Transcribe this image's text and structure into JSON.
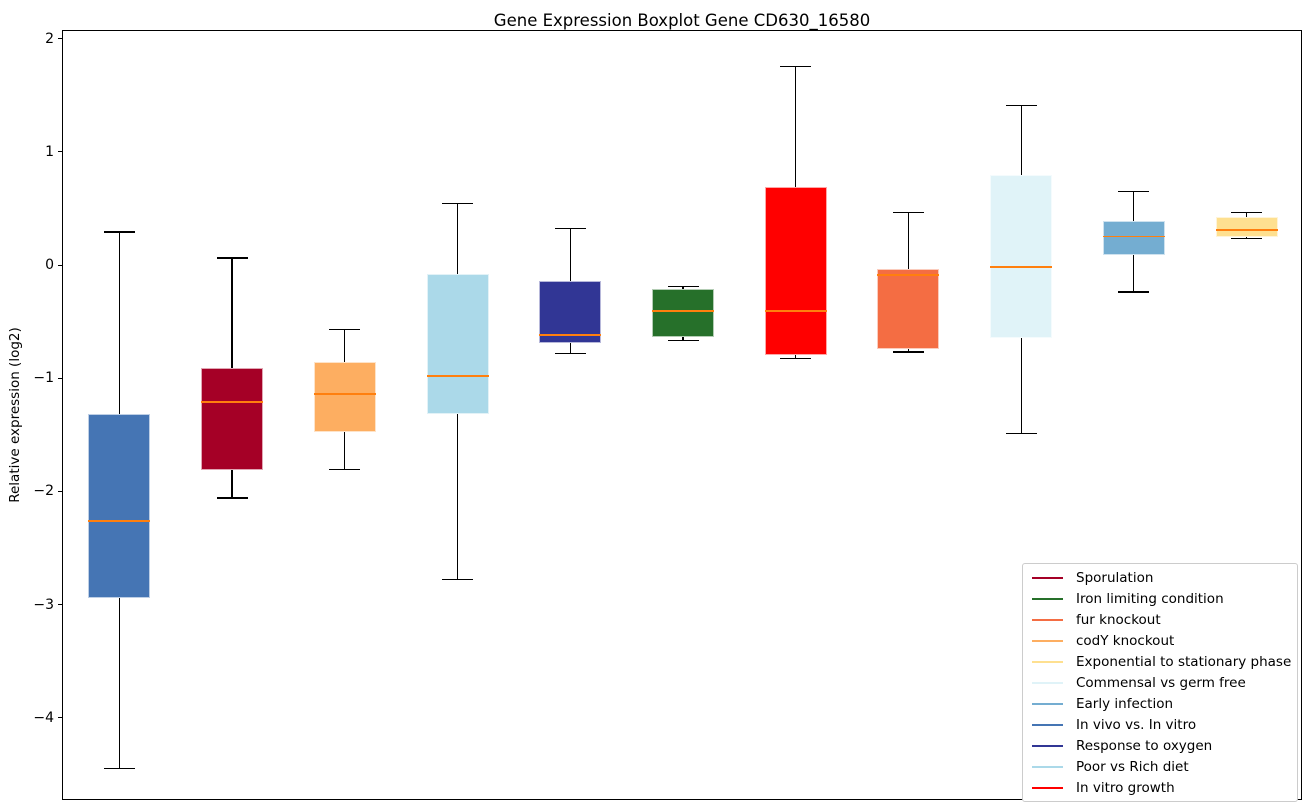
{
  "chart_data": {
    "type": "boxplot",
    "title": "Gene Expression Boxplot Gene CD630_16580",
    "xlabel": "",
    "ylabel": "Relative expression (log2)",
    "ylim": [
      -4.73,
      2.08
    ],
    "yticks": [
      2,
      1,
      0,
      -1,
      -2,
      -3,
      -4
    ],
    "grid": false,
    "legend_position": "lower right",
    "median_color": "#ff7f0e",
    "whisker_color": "#000000",
    "boxes": [
      {
        "label": "In vivo vs. In vitro",
        "color": "#4575b4",
        "whislo": -4.44,
        "q1": -2.93,
        "med": -2.25,
        "q3": -1.31,
        "whishi": 0.3
      },
      {
        "label": "Sporulation",
        "color": "#a50026",
        "whislo": -2.05,
        "q1": -1.8,
        "med": -1.2,
        "q3": -0.9,
        "whishi": 0.07
      },
      {
        "label": "codY knockout",
        "color": "#fdae61",
        "whislo": -1.8,
        "q1": -1.47,
        "med": -1.13,
        "q3": -0.85,
        "whishi": -0.56
      },
      {
        "label": "Poor vs Rich diet",
        "color": "#abd9e9",
        "whislo": -2.77,
        "q1": -1.31,
        "med": -0.97,
        "q3": -0.07,
        "whishi": 0.55
      },
      {
        "label": "Response to oxygen",
        "color": "#313695",
        "whislo": -0.77,
        "q1": -0.68,
        "med": -0.61,
        "q3": -0.13,
        "whishi": 0.33
      },
      {
        "label": "Iron limiting condition",
        "color": "#26702a",
        "whislo": -0.66,
        "q1": -0.63,
        "med": -0.4,
        "q3": -0.2,
        "whishi": -0.18
      },
      {
        "label": "In vitro growth",
        "color": "#ff0000",
        "whislo": -0.82,
        "q1": -0.79,
        "med": -0.4,
        "q3": 0.7,
        "whishi": 1.76
      },
      {
        "label": "fur knockout",
        "color": "#f46d43",
        "whislo": -0.76,
        "q1": -0.73,
        "med": -0.08,
        "q3": -0.03,
        "whishi": 0.47
      },
      {
        "label": "Commensal vs germ free",
        "color": "#e0f3f8",
        "whislo": -1.48,
        "q1": -0.64,
        "med": -0.01,
        "q3": 0.8,
        "whishi": 1.42
      },
      {
        "label": "Early infection",
        "color": "#74add1",
        "whislo": -0.23,
        "q1": 0.1,
        "med": 0.26,
        "q3": 0.4,
        "whishi": 0.66
      },
      {
        "label": "Exponential to stationary phase",
        "color": "#fee090",
        "whislo": 0.24,
        "q1": 0.26,
        "med": 0.32,
        "q3": 0.43,
        "whishi": 0.47
      }
    ],
    "legend": [
      {
        "label": "Sporulation",
        "color": "#a50026"
      },
      {
        "label": "Iron limiting condition",
        "color": "#26702a"
      },
      {
        "label": "fur knockout",
        "color": "#f46d43"
      },
      {
        "label": "codY knockout",
        "color": "#fdae61"
      },
      {
        "label": "Exponential to stationary phase",
        "color": "#fee090"
      },
      {
        "label": "Commensal vs germ free",
        "color": "#e0f3f8"
      },
      {
        "label": "Early infection",
        "color": "#74add1"
      },
      {
        "label": "In vivo vs. In vitro",
        "color": "#4575b4"
      },
      {
        "label": "Response to oxygen",
        "color": "#313695"
      },
      {
        "label": "Poor vs Rich diet",
        "color": "#abd9e9"
      },
      {
        "label": "In vitro growth",
        "color": "#ff0000"
      }
    ]
  }
}
